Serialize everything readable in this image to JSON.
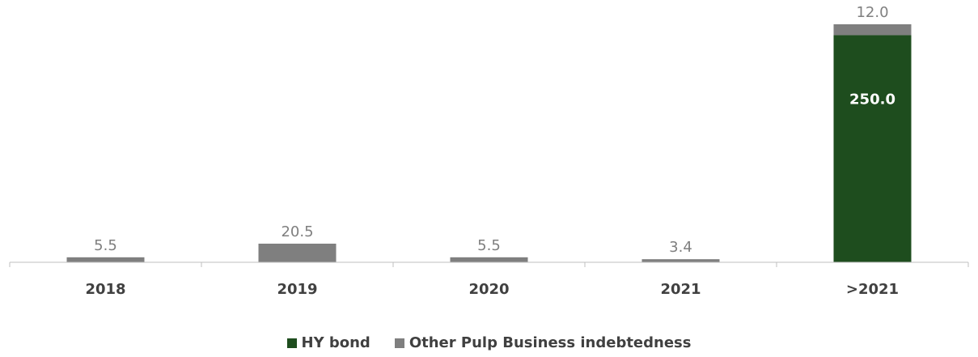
{
  "chart_data": {
    "type": "bar",
    "stacked": true,
    "categories": [
      "2018",
      "2019",
      "2020",
      "2021",
      ">2021"
    ],
    "series": [
      {
        "name": "HY bond",
        "color": "#1e4d1e",
        "values": [
          0,
          0,
          0,
          0,
          250.0
        ],
        "labels": [
          "",
          "",
          "",
          "",
          "250.0"
        ]
      },
      {
        "name": "Other Pulp Business indebtedness",
        "color": "#7f7f7f",
        "values": [
          5.5,
          20.5,
          5.5,
          3.4,
          12.0
        ],
        "labels": [
          "5.5",
          "20.5",
          "5.5",
          "3.4",
          "12.0"
        ]
      }
    ],
    "title": "",
    "xlabel": "",
    "ylabel": "",
    "ylim": [
      0,
      262
    ],
    "grid": false,
    "legend_position": "bottom"
  }
}
